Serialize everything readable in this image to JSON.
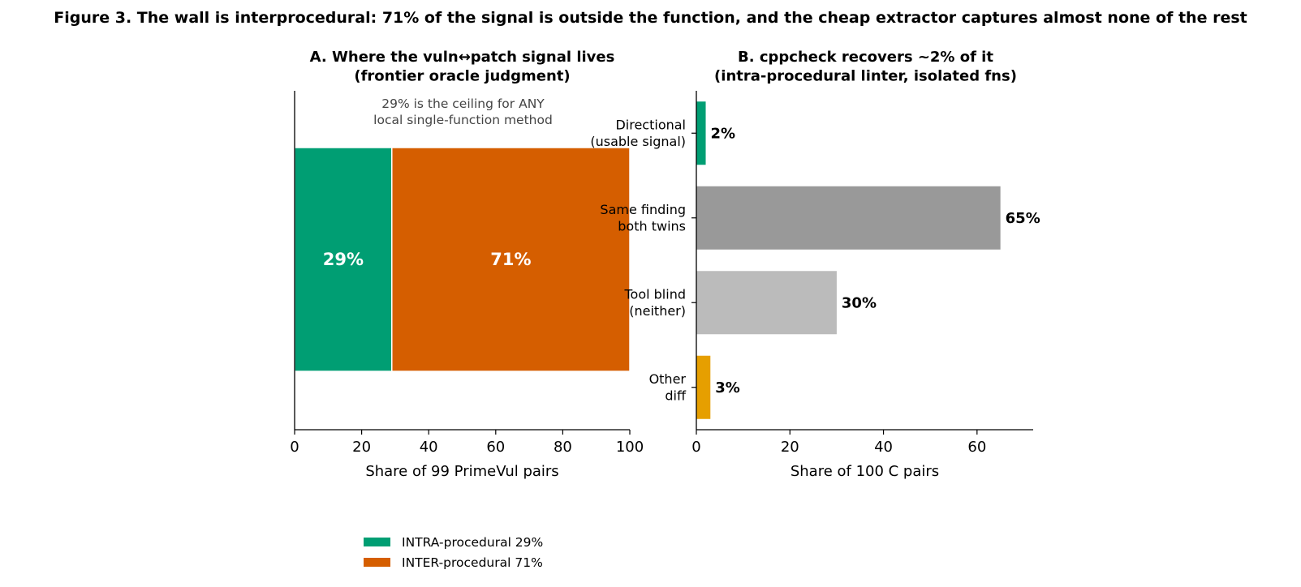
{
  "figure": {
    "title": "Figure 3.  The wall is interprocedural: 71% of the signal is outside the function, and the cheap extractor captures almost none of the rest"
  },
  "chart_data": [
    {
      "type": "bar",
      "orientation": "horizontal",
      "stacked": true,
      "title_lines": [
        "A. Where the vuln↔patch signal lives",
        "(frontier oracle judgment)"
      ],
      "xlabel": "Share of 99 PrimeVul pairs",
      "ylabel": "",
      "xlim": [
        0,
        100
      ],
      "xticks": [
        0,
        20,
        40,
        60,
        80,
        100
      ],
      "grid": false,
      "annotation_lines": [
        "29% is the ceiling for ANY",
        "local single-function method"
      ],
      "series": [
        {
          "name": "INTRA-procedural  29%",
          "value": 29,
          "label": "29%",
          "color": "#009E73"
        },
        {
          "name": "INTER-procedural  71%",
          "value": 71,
          "label": "71%",
          "color": "#D55E00"
        }
      ],
      "legend": "bottom-left"
    },
    {
      "type": "bar",
      "orientation": "horizontal",
      "title_lines": [
        "B. cppcheck recovers ~2% of it",
        "(intra-procedural linter, isolated fns)"
      ],
      "xlabel": "Share of 100 C pairs",
      "ylabel": "",
      "xlim": [
        0,
        72
      ],
      "xticks": [
        0,
        20,
        40,
        60
      ],
      "grid": false,
      "categories": [
        [
          "Directional",
          "(usable signal)"
        ],
        [
          "Same finding",
          "both twins"
        ],
        [
          "Tool blind",
          "(neither)"
        ],
        [
          "Other",
          "diff"
        ]
      ],
      "values": [
        2,
        65,
        30,
        3
      ],
      "labels": [
        "2%",
        "65%",
        "30%",
        "3%"
      ],
      "colors": [
        "#009E73",
        "#999999",
        "#BBBBBB",
        "#E69F00"
      ]
    }
  ]
}
